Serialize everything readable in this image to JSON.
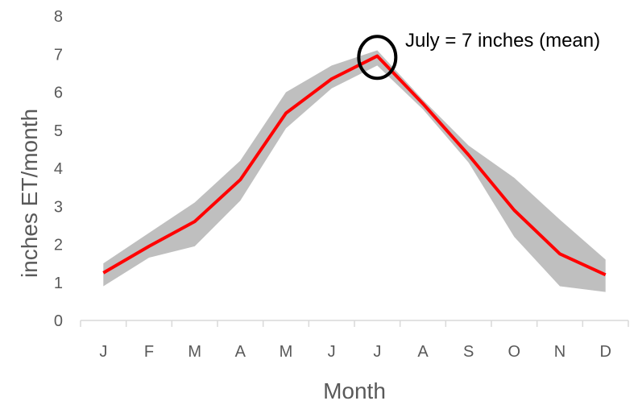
{
  "chart_data": {
    "type": "line",
    "title": "",
    "xlabel": "Month",
    "ylabel": "inches ET/month",
    "ylim": [
      0,
      8
    ],
    "yticks": [
      "0",
      "1",
      "2",
      "3",
      "4",
      "5",
      "6",
      "7",
      "8"
    ],
    "categories": [
      "J",
      "F",
      "M",
      "A",
      "M",
      "J",
      "J",
      "A",
      "S",
      "O",
      "N",
      "D"
    ],
    "grid": false,
    "series": [
      {
        "values": [
          1.25,
          1.95,
          2.6,
          3.7,
          5.45,
          6.35,
          6.95,
          5.7,
          4.35,
          2.9,
          1.75,
          1.2
        ]
      }
    ],
    "band": {
      "upper": [
        1.5,
        2.3,
        3.1,
        4.2,
        6.0,
        6.7,
        7.1,
        5.8,
        4.6,
        3.75,
        2.65,
        1.6
      ],
      "lower": [
        0.9,
        1.65,
        1.95,
        3.15,
        5.05,
        6.1,
        6.7,
        5.55,
        4.15,
        2.2,
        0.9,
        0.75
      ]
    },
    "annotation": {
      "text": "July = 7 inches (mean)",
      "category_index": 6,
      "value": 7
    },
    "colors": {
      "line": "#ff0000",
      "band": "#bfbfbf",
      "axis": "#d9d9d9",
      "text": "#595959",
      "circle": "#000000"
    }
  }
}
